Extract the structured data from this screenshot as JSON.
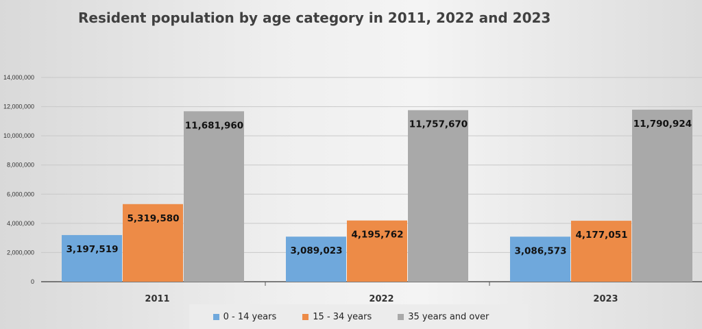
{
  "chart_data": {
    "type": "bar",
    "title": "Resident population by age category in 2011, 2022 and 2023",
    "categories": [
      "2011",
      "2022",
      "2023"
    ],
    "series": [
      {
        "name": "0 - 14 years",
        "color": "#6fa8dc",
        "values": [
          3197519,
          3089023,
          3086573
        ],
        "labels": [
          "3,197,519",
          "3,089,023",
          "3,086,573"
        ]
      },
      {
        "name": "15 - 34 years",
        "color": "#ed8b47",
        "values": [
          5319580,
          4195762,
          4177051
        ],
        "labels": [
          "5,319,580",
          "4,195,762",
          "4,177,051"
        ]
      },
      {
        "name": "35 years and over",
        "color": "#a9a9a9",
        "values": [
          11681960,
          11757670,
          11790924
        ],
        "labels": [
          "11,681,960",
          "11,757,670",
          "11,790,924"
        ]
      }
    ],
    "yticks": [
      "0",
      "2,000,000",
      "4,000,000",
      "6,000,000",
      "8,000,000",
      "10,000,000",
      "12,000,000",
      "14,000,000"
    ],
    "ylim": [
      0,
      14000000
    ],
    "grid": true,
    "legend": "bottom"
  }
}
